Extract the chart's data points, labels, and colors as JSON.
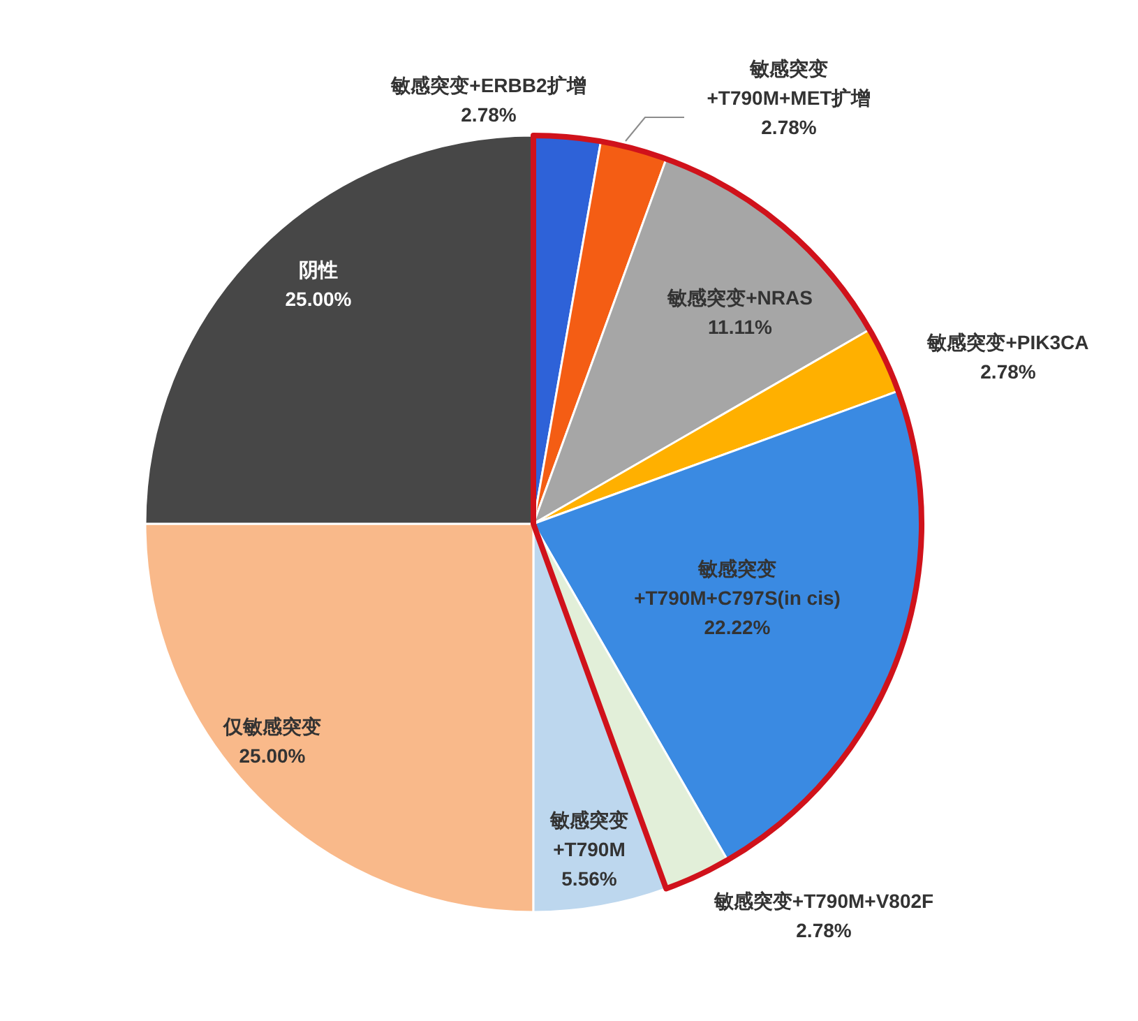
{
  "chart_data": {
    "type": "pie",
    "categories": [
      "敏感突变+ERBB2扩增",
      "敏感突变+T790M+MET扩增",
      "敏感突变+NRAS",
      "敏感突变+PIK3CA",
      "敏感突变+T790M+C797S(in cis)",
      "敏感突变+T790M+V802F",
      "敏感突变+T790M",
      "仅敏感突变",
      "阴性"
    ],
    "values": [
      2.78,
      2.78,
      11.11,
      2.78,
      22.22,
      2.78,
      5.56,
      25.0,
      25.0
    ],
    "value_labels": [
      "2.78%",
      "2.78%",
      "11.11%",
      "2.78%",
      "22.22%",
      "2.78%",
      "5.56%",
      "25.00%",
      "25.00%"
    ],
    "colors": [
      "#2e62d8",
      "#f45d14",
      "#a6a6a6",
      "#ffb000",
      "#3a8ae2",
      "#e2efd9",
      "#bdd7ee",
      "#f9b98a",
      "#474747"
    ]
  }
}
